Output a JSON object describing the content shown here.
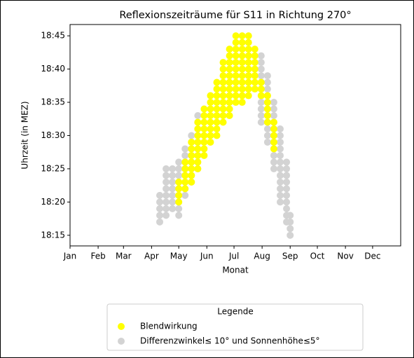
{
  "chart_data": {
    "type": "scatter",
    "title": "Reflexionszeiträume für S11 in Richtung 270°",
    "x_label": "Monat",
    "y_label": "Uhrzeit (in MEZ)",
    "legend_title": "Legende",
    "legend": "lower center",
    "xlim": [
      1,
      366
    ],
    "ylim": [
      1093.4,
      1126.7
    ],
    "xticks": [
      {
        "value": 1,
        "label": "Jan"
      },
      {
        "value": 32,
        "label": "Feb"
      },
      {
        "value": 60,
        "label": "Mar"
      },
      {
        "value": 91,
        "label": "Apr"
      },
      {
        "value": 121,
        "label": "May"
      },
      {
        "value": 152,
        "label": "Jun"
      },
      {
        "value": 182,
        "label": "Jul"
      },
      {
        "value": 213,
        "label": "Aug"
      },
      {
        "value": 244,
        "label": "Sep"
      },
      {
        "value": 274,
        "label": "Oct"
      },
      {
        "value": 305,
        "label": "Nov"
      },
      {
        "value": 335,
        "label": "Dec"
      }
    ],
    "yticks": [
      {
        "value": 1095,
        "label": "18:15"
      },
      {
        "value": 1100,
        "label": "18:20"
      },
      {
        "value": 1105,
        "label": "18:25"
      },
      {
        "value": 1110,
        "label": "18:30"
      },
      {
        "value": 1115,
        "label": "18:35"
      },
      {
        "value": 1120,
        "label": "18:40"
      },
      {
        "value": 1125,
        "label": "18:45"
      }
    ],
    "series": [
      {
        "name": "Differenzwinkel≤ 10° und Sonnenhöhe≤5°",
        "color": "#d3d3d3",
        "x": [
          100,
          100,
          100,
          100,
          100,
          107,
          107,
          107,
          107,
          107,
          107,
          107,
          107,
          114,
          114,
          114,
          114,
          114,
          114,
          114,
          121,
          121,
          121,
          121,
          121,
          121,
          121,
          121,
          121,
          128,
          128,
          128,
          128,
          128,
          128,
          128,
          128,
          135,
          135,
          135,
          135,
          135,
          135,
          135,
          135,
          142,
          142,
          142,
          142,
          142,
          142,
          142,
          142,
          142,
          212,
          212,
          212,
          212,
          212,
          212,
          212,
          212,
          212,
          212,
          212,
          219,
          219,
          219,
          219,
          219,
          219,
          219,
          219,
          219,
          219,
          219,
          226,
          226,
          226,
          226,
          226,
          226,
          226,
          226,
          226,
          226,
          226,
          233,
          233,
          233,
          233,
          233,
          233,
          233,
          233,
          233,
          233,
          233,
          233,
          240,
          240,
          240,
          240,
          240,
          240,
          240,
          240,
          240,
          240,
          244,
          244,
          244,
          244
        ],
        "values": [
          1097,
          1098,
          1099,
          1100,
          1101,
          1098,
          1099,
          1100,
          1101,
          1102,
          1103,
          1104,
          1105,
          1099,
          1100,
          1101,
          1102,
          1103,
          1104,
          1105,
          1098,
          1099,
          1100,
          1101,
          1102,
          1103,
          1104,
          1105,
          1106,
          1101,
          1102,
          1103,
          1104,
          1105,
          1106,
          1107,
          1108,
          1103,
          1104,
          1105,
          1106,
          1107,
          1108,
          1109,
          1110,
          1105,
          1106,
          1107,
          1108,
          1109,
          1110,
          1111,
          1112,
          1113,
          1112,
          1113,
          1114,
          1115,
          1116,
          1117,
          1118,
          1119,
          1120,
          1121,
          1122,
          1109,
          1110,
          1111,
          1112,
          1113,
          1114,
          1115,
          1116,
          1117,
          1118,
          1119,
          1105,
          1106,
          1107,
          1108,
          1109,
          1110,
          1111,
          1112,
          1113,
          1114,
          1115,
          1100,
          1101,
          1102,
          1103,
          1104,
          1105,
          1106,
          1107,
          1108,
          1109,
          1110,
          1111,
          1097,
          1098,
          1099,
          1100,
          1101,
          1102,
          1103,
          1104,
          1105,
          1106,
          1095,
          1096,
          1097,
          1098
        ]
      },
      {
        "name": "Blendwirkung",
        "color": "#ffff00",
        "x": [
          121,
          121,
          121,
          121,
          128,
          128,
          128,
          128,
          128,
          135,
          135,
          135,
          135,
          135,
          135,
          135,
          142,
          142,
          142,
          142,
          142,
          142,
          142,
          142,
          149,
          149,
          149,
          149,
          149,
          149,
          149,
          149,
          156,
          156,
          156,
          156,
          156,
          156,
          156,
          156,
          163,
          163,
          163,
          163,
          163,
          163,
          163,
          163,
          163,
          170,
          170,
          170,
          170,
          170,
          170,
          170,
          170,
          170,
          170,
          177,
          177,
          177,
          177,
          177,
          177,
          177,
          177,
          177,
          177,
          177,
          184,
          184,
          184,
          184,
          184,
          184,
          184,
          184,
          184,
          184,
          184,
          191,
          191,
          191,
          191,
          191,
          191,
          191,
          191,
          191,
          191,
          191,
          198,
          198,
          198,
          198,
          198,
          198,
          198,
          198,
          198,
          198,
          205,
          205,
          205,
          205,
          205,
          205,
          205,
          212,
          212,
          212,
          219,
          219,
          219,
          219,
          219,
          226,
          226,
          226,
          226,
          226
        ],
        "values": [
          1100,
          1101,
          1102,
          1103,
          1102,
          1103,
          1104,
          1105,
          1106,
          1103,
          1104,
          1105,
          1106,
          1107,
          1108,
          1109,
          1105,
          1106,
          1107,
          1108,
          1109,
          1110,
          1111,
          1112,
          1107,
          1108,
          1109,
          1110,
          1111,
          1112,
          1113,
          1114,
          1109,
          1110,
          1111,
          1112,
          1113,
          1114,
          1115,
          1116,
          1110,
          1111,
          1112,
          1113,
          1114,
          1115,
          1116,
          1117,
          1118,
          1112,
          1113,
          1114,
          1115,
          1116,
          1117,
          1118,
          1119,
          1120,
          1121,
          1113,
          1114,
          1115,
          1116,
          1117,
          1118,
          1119,
          1120,
          1121,
          1122,
          1123,
          1115,
          1116,
          1117,
          1118,
          1119,
          1120,
          1121,
          1122,
          1123,
          1124,
          1125,
          1115,
          1116,
          1117,
          1118,
          1119,
          1120,
          1121,
          1122,
          1123,
          1124,
          1125,
          1116,
          1117,
          1118,
          1119,
          1120,
          1121,
          1122,
          1123,
          1124,
          1125,
          1117,
          1118,
          1119,
          1120,
          1121,
          1122,
          1123,
          1116,
          1117,
          1118,
          1112,
          1113,
          1114,
          1115,
          1116,
          1108,
          1109,
          1110,
          1111,
          1112
        ]
      }
    ]
  }
}
